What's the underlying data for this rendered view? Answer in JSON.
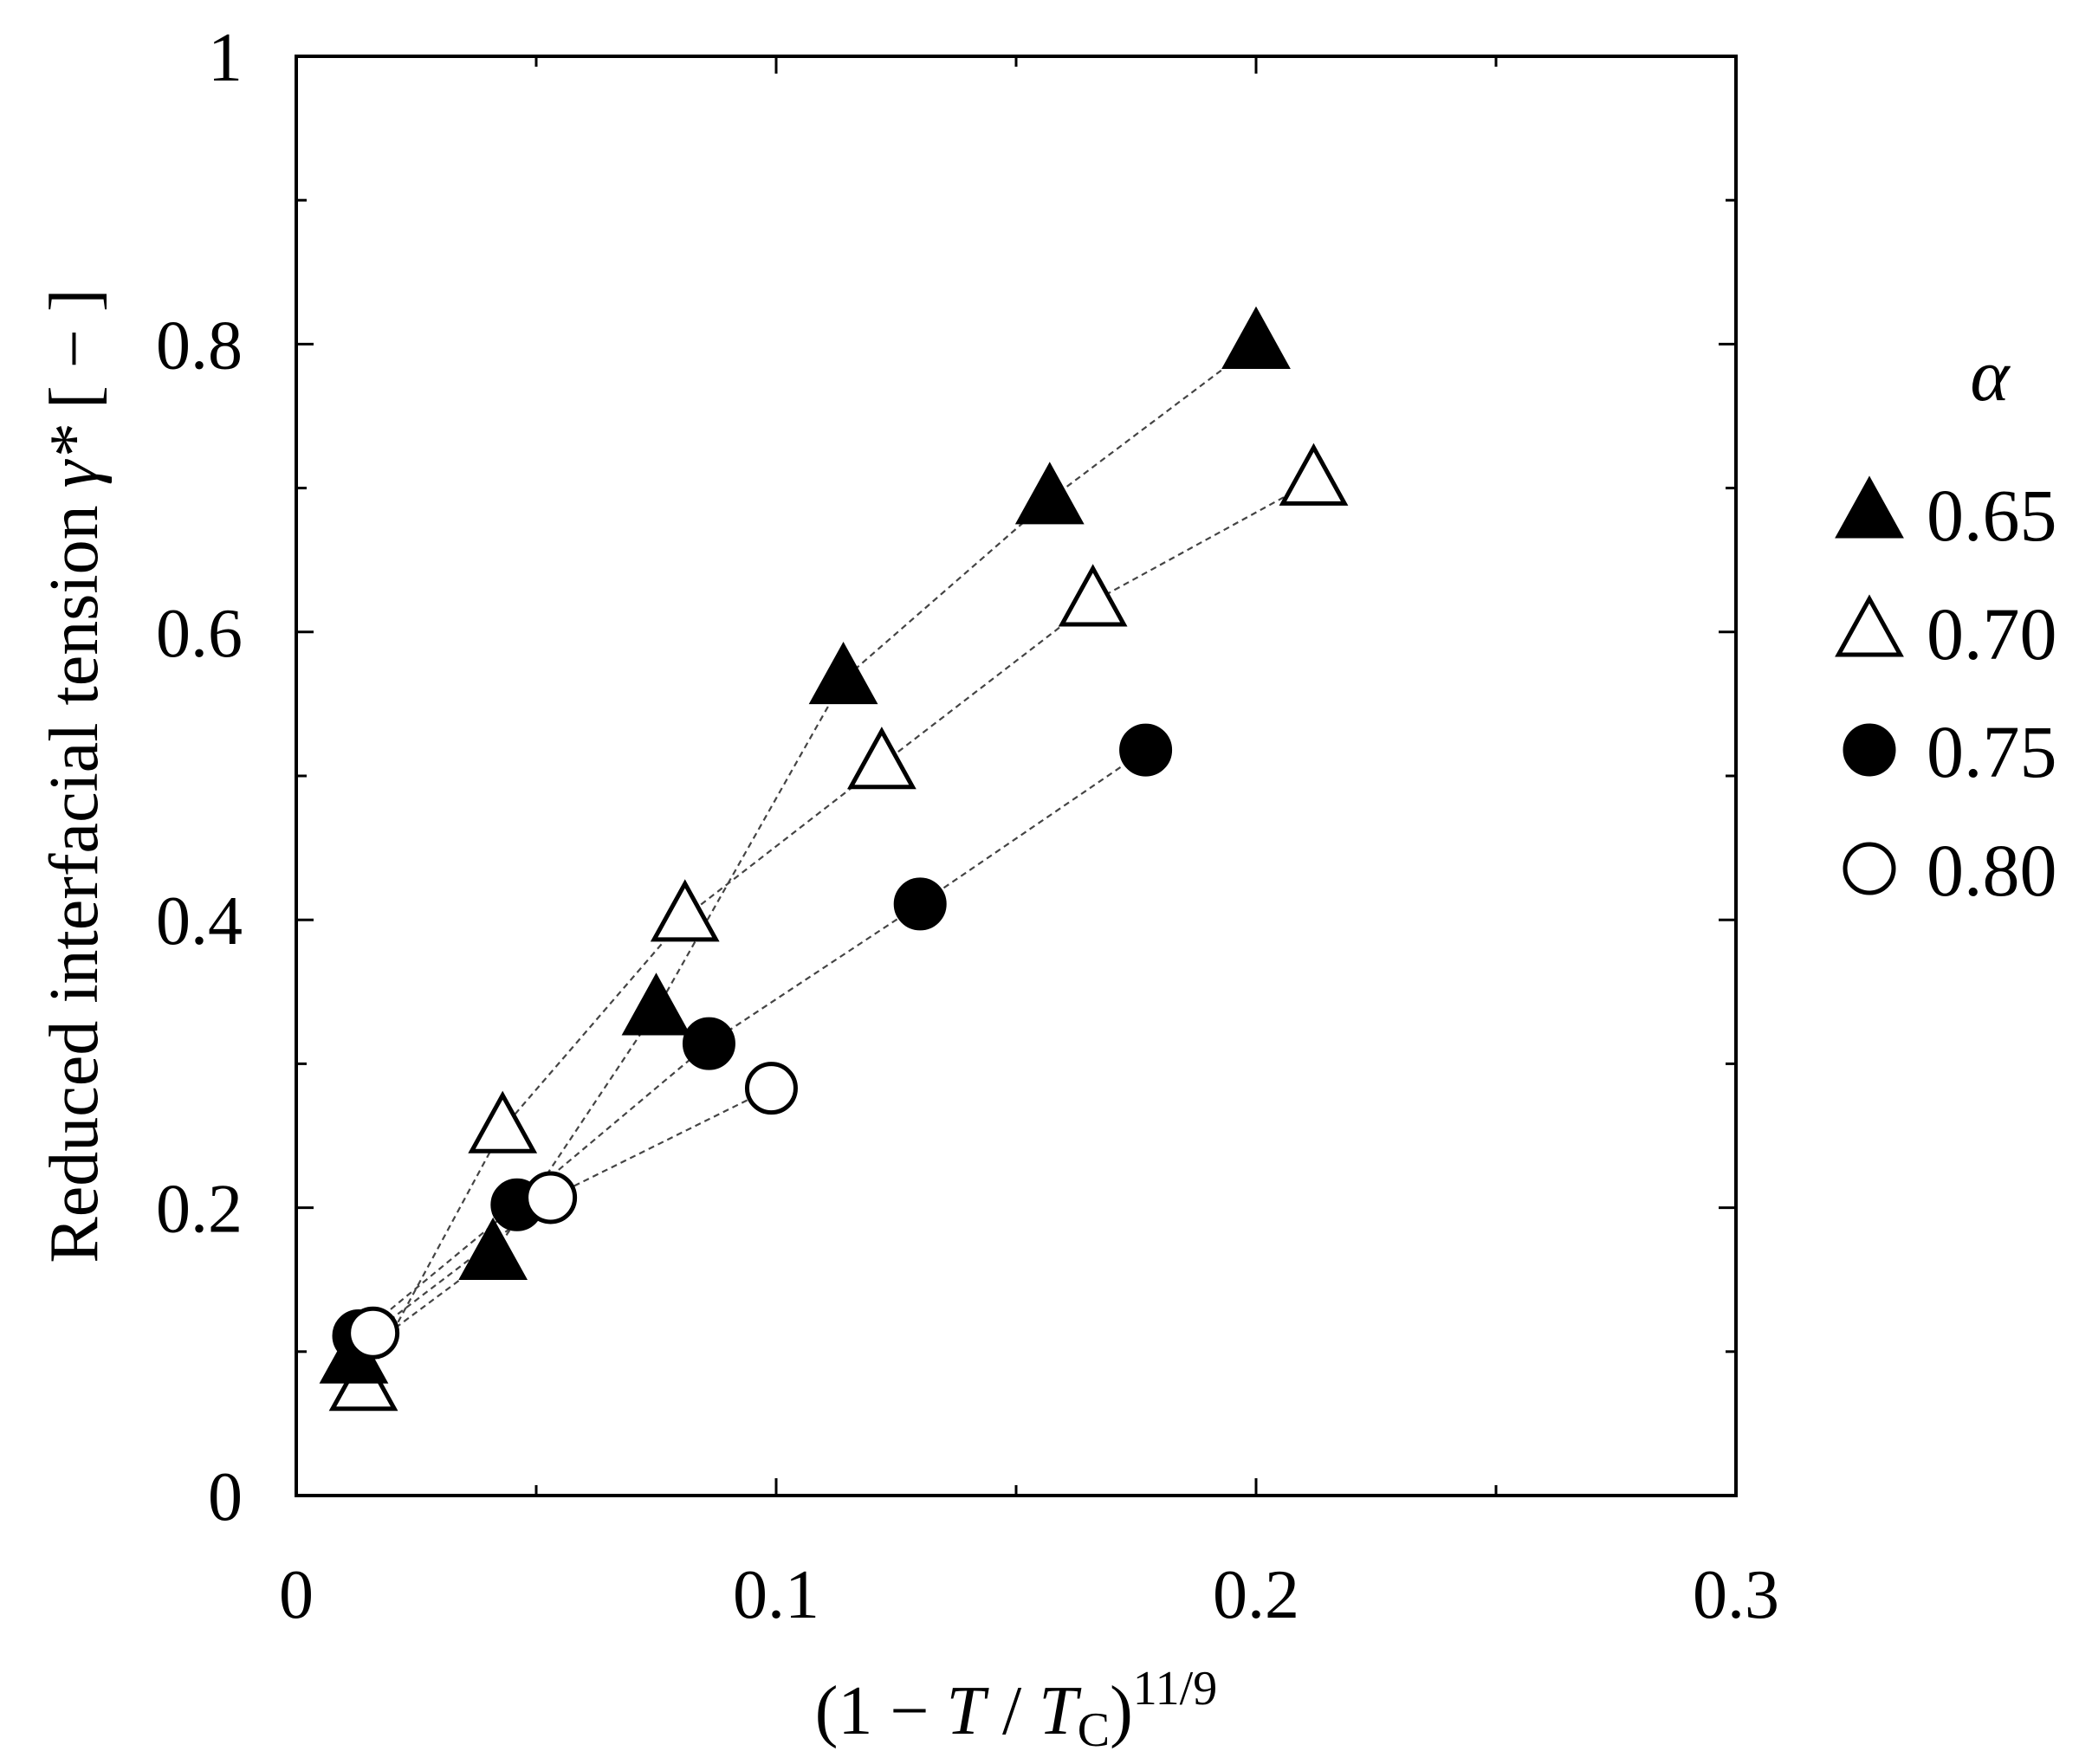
{
  "chart_data": {
    "type": "scatter",
    "xlabel": {
      "prefix": "(1 − ",
      "T": "T",
      "slash": " / ",
      "T2": "T",
      "sub": "C",
      "close": ")",
      "sup": "11/9"
    },
    "ylabel": {
      "main": "Reduced interfacial tension ",
      "sym": "γ*",
      "unit": " [ − ]"
    },
    "xlim": [
      0,
      0.3
    ],
    "ylim": [
      0,
      1
    ],
    "x_ticks": [
      0,
      0.1,
      0.2,
      0.3
    ],
    "x_tick_labels": [
      "0",
      "0.1",
      "0.2",
      "0.3"
    ],
    "y_ticks": [
      0,
      0.2,
      0.4,
      0.6,
      0.8,
      1
    ],
    "y_tick_labels": [
      "0",
      "0.2",
      "0.4",
      "0.6",
      "0.8",
      "1"
    ],
    "x_minor_ticks": [
      0.05,
      0.15,
      0.25
    ],
    "y_minor_ticks": [
      0.1,
      0.3,
      0.5,
      0.7,
      0.9
    ],
    "grid": false,
    "legend": {
      "title": "α",
      "placement": "right"
    },
    "series": [
      {
        "name": "0.65",
        "marker": "triangle-filled",
        "color": "#000000",
        "x": [
          0.012,
          0.041,
          0.075,
          0.114,
          0.157,
          0.2
        ],
        "y": [
          0.095,
          0.167,
          0.337,
          0.567,
          0.692,
          0.8
        ]
      },
      {
        "name": "0.70",
        "marker": "triangle-open",
        "color": "#000000",
        "x": [
          0.014,
          0.043,
          0.081,
          0.122,
          0.166,
          0.212
        ],
        "y": [
          0.076,
          0.255,
          0.402,
          0.508,
          0.621,
          0.705
        ]
      },
      {
        "name": "0.75",
        "marker": "circle-filled",
        "color": "#000000",
        "x": [
          0.013,
          0.046,
          0.086,
          0.13,
          0.177
        ],
        "y": [
          0.111,
          0.202,
          0.314,
          0.411,
          0.518
        ]
      },
      {
        "name": "0.80",
        "marker": "circle-open",
        "color": "#000000",
        "x": [
          0.016,
          0.053,
          0.099
        ],
        "y": [
          0.113,
          0.207,
          0.283
        ]
      }
    ]
  }
}
